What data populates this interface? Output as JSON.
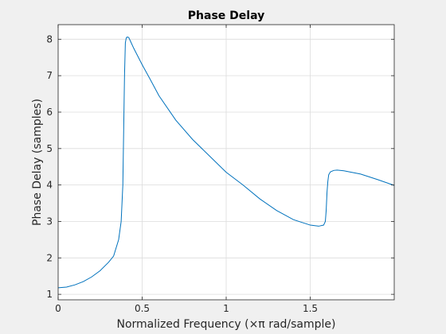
{
  "chart_data": {
    "type": "line",
    "title": "Phase Delay",
    "xlabel": "Normalized Frequency (×π rad/sample)",
    "ylabel": "Phase Delay (samples)",
    "xlim": [
      0,
      2
    ],
    "ylim": [
      0.85,
      8.4
    ],
    "xticks": [
      0,
      0.5,
      1,
      1.5
    ],
    "xtick_labels": [
      "0",
      "0.5",
      "1",
      "1.5"
    ],
    "yticks": [
      1,
      2,
      3,
      4,
      5,
      6,
      7,
      8
    ],
    "ytick_labels": [
      "1",
      "2",
      "3",
      "4",
      "5",
      "6",
      "7",
      "8"
    ],
    "grid": true,
    "line_color": "#0072bd",
    "series": [
      {
        "x": [
          0,
          0.05,
          0.1,
          0.15,
          0.2,
          0.25,
          0.3,
          0.33,
          0.36,
          0.375,
          0.385,
          0.39,
          0.395,
          0.4,
          0.405,
          0.41,
          0.42,
          0.43,
          0.45,
          0.5,
          0.55,
          0.6,
          0.7,
          0.8,
          0.9,
          1.0,
          1.1,
          1.2,
          1.3,
          1.4,
          1.5,
          1.55,
          1.58,
          1.59,
          1.595,
          1.6,
          1.605,
          1.61,
          1.62,
          1.64,
          1.66,
          1.7,
          1.8,
          1.9,
          2.0
        ],
        "y": [
          1.18,
          1.2,
          1.26,
          1.35,
          1.48,
          1.65,
          1.88,
          2.05,
          2.5,
          3.0,
          4.0,
          5.5,
          7.0,
          7.9,
          8.03,
          8.06,
          8.05,
          7.95,
          7.75,
          7.3,
          6.88,
          6.45,
          5.78,
          5.25,
          4.8,
          4.35,
          4.0,
          3.62,
          3.3,
          3.05,
          2.9,
          2.87,
          2.9,
          3.0,
          3.3,
          3.8,
          4.1,
          4.28,
          4.36,
          4.4,
          4.41,
          4.39,
          4.3,
          4.15,
          3.99
        ]
      }
    ]
  }
}
